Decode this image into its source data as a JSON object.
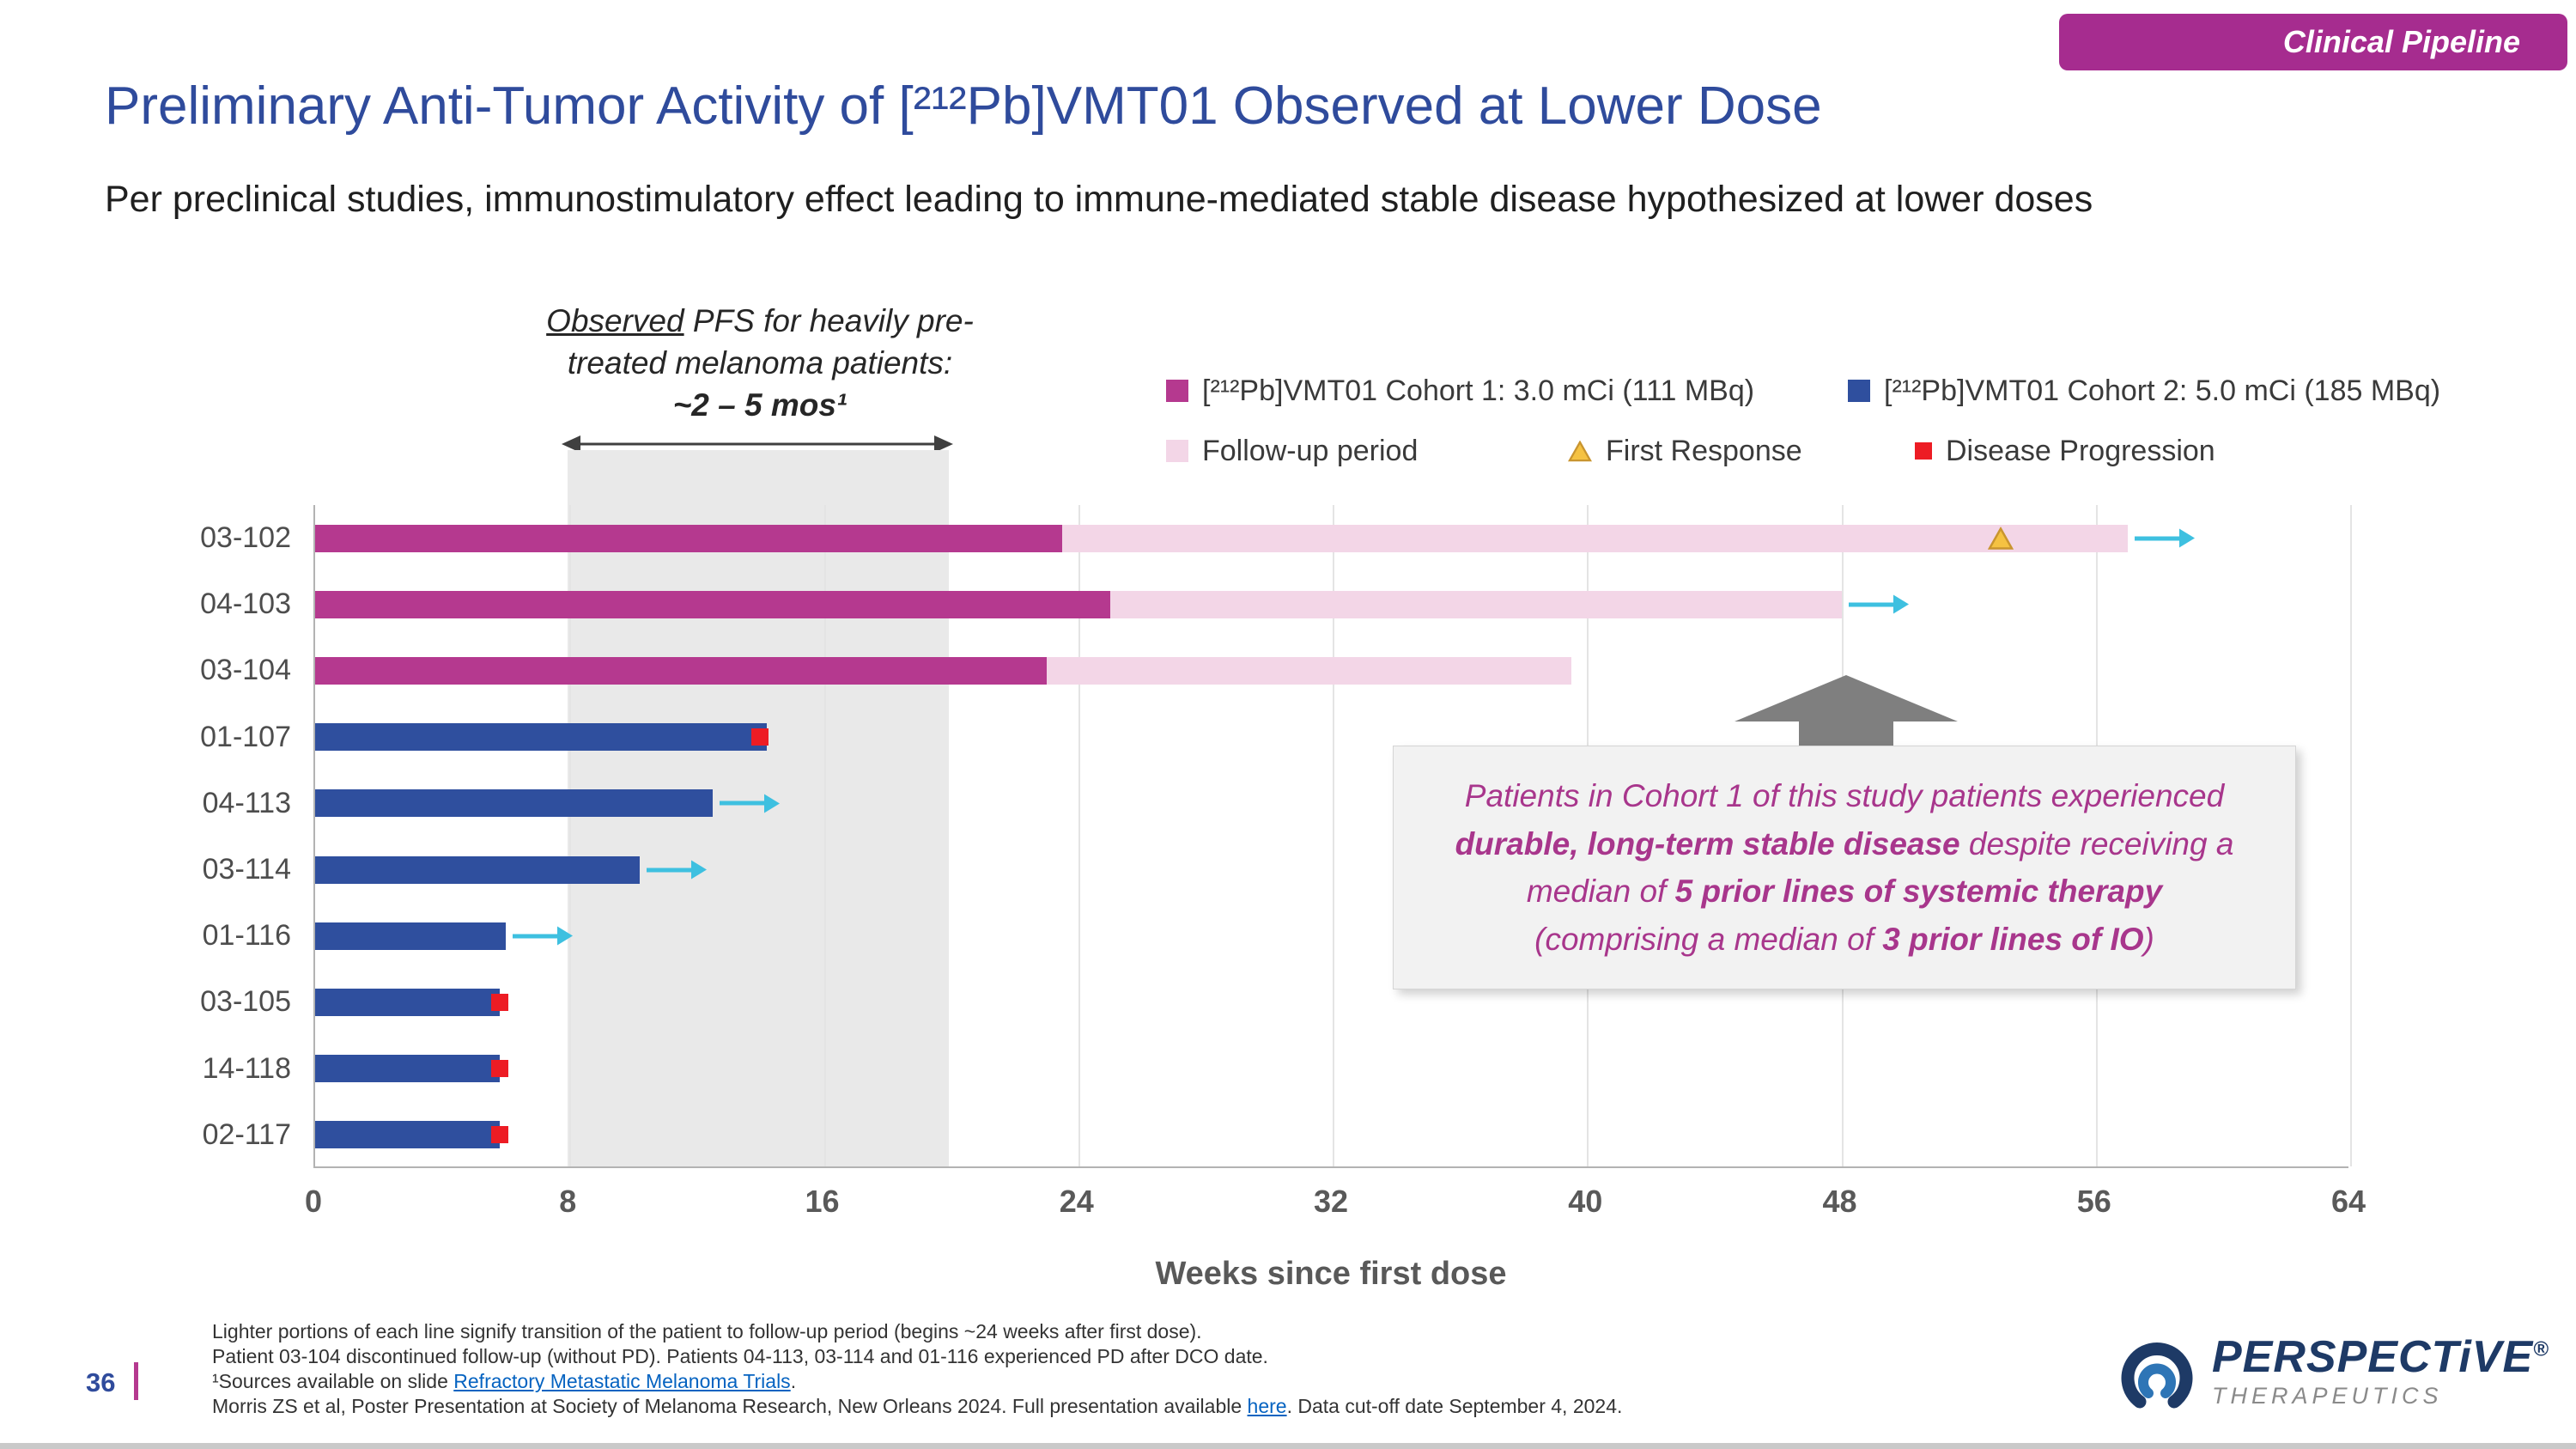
{
  "badge": {
    "label": "Clinical Pipeline"
  },
  "header": {
    "title": "Preliminary Anti-Tumor Activity of [²¹²Pb]VMT01 Observed at Lower Dose",
    "subtitle": "Per preclinical studies, immunostimulatory effect leading to immune-mediated stable disease hypothesized at lower doses"
  },
  "annotation": {
    "line1_underlined": "Observed",
    "line1_rest": " PFS for heavily pre-",
    "line2": "treated melanoma patients:",
    "line3": "~2 – 5 mos¹"
  },
  "legend": {
    "items": [
      {
        "label": "[²¹²Pb]VMT01 Cohort 1: 3.0 mCi (111 MBq)",
        "marker": "square",
        "color_key": "cohort1"
      },
      {
        "label": "[²¹²Pb]VMT01 Cohort 2: 5.0 mCi (185 MBq)",
        "marker": "square",
        "color_key": "cohort2"
      },
      {
        "label": "Follow-up period",
        "marker": "square",
        "color_key": "followup"
      },
      {
        "label": "First Response",
        "marker": "triangle",
        "color_key": "first_response"
      },
      {
        "label": "Disease Progression",
        "marker": "square",
        "color_key": "progression"
      }
    ]
  },
  "chart_data": {
    "type": "bar",
    "orientation": "horizontal",
    "title": "",
    "xlabel": "Weeks since first dose",
    "ylabel": "",
    "xlim": [
      0,
      64
    ],
    "xticks": [
      0,
      8,
      16,
      24,
      32,
      40,
      48,
      56,
      64
    ],
    "shaded_region": {
      "from_week": 8,
      "to_week": 20,
      "note": "Observed PFS for heavily pre-treated melanoma patients: ~2 – 5 mos"
    },
    "patients": [
      {
        "id": "03-102",
        "cohort": 1,
        "treatment_end": 23.5,
        "followup_end": 57,
        "first_response": 53,
        "progression": null,
        "ongoing": true
      },
      {
        "id": "04-103",
        "cohort": 1,
        "treatment_end": 25,
        "followup_end": 48,
        "first_response": null,
        "progression": null,
        "ongoing": true
      },
      {
        "id": "03-104",
        "cohort": 1,
        "treatment_end": 23,
        "followup_end": 39.5,
        "first_response": null,
        "progression": null,
        "ongoing": false
      },
      {
        "id": "01-107",
        "cohort": 2,
        "treatment_end": 14.2,
        "followup_end": null,
        "first_response": null,
        "progression": 14,
        "ongoing": false
      },
      {
        "id": "04-113",
        "cohort": 2,
        "treatment_end": 12.5,
        "followup_end": null,
        "first_response": null,
        "progression": null,
        "ongoing": true
      },
      {
        "id": "03-114",
        "cohort": 2,
        "treatment_end": 10.2,
        "followup_end": null,
        "first_response": null,
        "progression": null,
        "ongoing": true
      },
      {
        "id": "01-116",
        "cohort": 2,
        "treatment_end": 6,
        "followup_end": null,
        "first_response": null,
        "progression": null,
        "ongoing": true
      },
      {
        "id": "03-105",
        "cohort": 2,
        "treatment_end": 5.8,
        "followup_end": null,
        "first_response": null,
        "progression": 5.8,
        "ongoing": false
      },
      {
        "id": "14-118",
        "cohort": 2,
        "treatment_end": 5.8,
        "followup_end": null,
        "first_response": null,
        "progression": 5.8,
        "ongoing": false
      },
      {
        "id": "02-117",
        "cohort": 2,
        "treatment_end": 5.8,
        "followup_end": null,
        "first_response": null,
        "progression": 5.8,
        "ongoing": false
      }
    ]
  },
  "callout": {
    "lines": [
      [
        {
          "t": "Patients in Cohort 1 of this study patients experienced"
        }
      ],
      [
        {
          "t": "durable, long-term stable disease",
          "b": true
        },
        {
          "t": " despite receiving a"
        }
      ],
      [
        {
          "t": "median of "
        },
        {
          "t": "5 prior lines of systemic therapy",
          "b": true
        }
      ],
      [
        {
          "t": "(comprising a median of "
        },
        {
          "t": "3 prior lines of IO",
          "b": true
        },
        {
          "t": ")"
        }
      ]
    ]
  },
  "footnotes": {
    "lines": [
      [
        {
          "t": "Lighter portions of each line signify transition of the patient to follow-up period (begins ~24 weeks after first dose)."
        }
      ],
      [
        {
          "t": "Patient 03-104 discontinued follow-up (without PD). Patients 04-113, 03-114 and 01-116 experienced PD after DCO date."
        }
      ],
      [
        {
          "t": "¹Sources available on slide "
        },
        {
          "t": "Refractory Metastatic Melanoma Trials",
          "link": true
        },
        {
          "t": "."
        }
      ],
      [
        {
          "t": "Morris ZS et al, Poster Presentation at Society of Melanoma Research, New Orleans 2024. Full presentation available "
        },
        {
          "t": "here",
          "link": true
        },
        {
          "t": ". Data cut-off date September 4, 2024."
        }
      ]
    ]
  },
  "page": {
    "number": "36"
  },
  "logo": {
    "brand": "PERSPECTiVE",
    "registered": "®",
    "division": "THERAPEUTICS"
  },
  "colors": {
    "cohort1": "#B5398F",
    "cohort2": "#2F4F9E",
    "followup": "#F3D6E7",
    "first_response": "#F5C242",
    "first_response_border": "#C9952F",
    "progression": "#ED1C24",
    "ongoing_arrow": "#3EC0E0",
    "badge": "#A62C8F",
    "title": "#2F4B9C",
    "callout_text": "#A8368C"
  }
}
